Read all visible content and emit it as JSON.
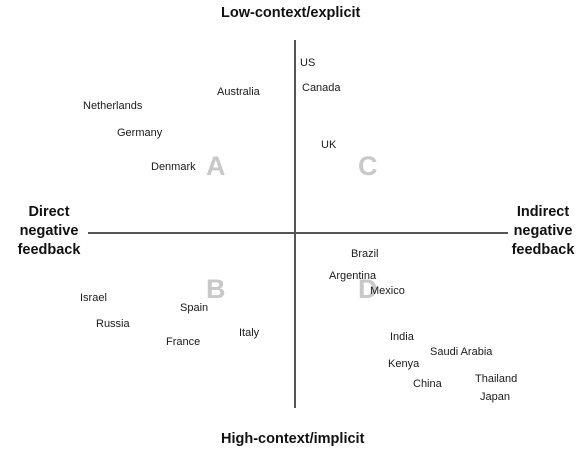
{
  "axes": {
    "top": "Low-context/explicit",
    "bottom": "High-context/implicit",
    "left": [
      "Direct",
      "negative",
      "feedback"
    ],
    "right": [
      "Indirect",
      "negative",
      "feedback"
    ]
  },
  "quadrants": [
    "A",
    "B",
    "C",
    "D"
  ],
  "countries": {
    "us": "US",
    "canada": "Canada",
    "australia": "Australia",
    "netherlands": "Netherlands",
    "germany": "Germany",
    "denmark": "Denmark",
    "uk": "UK",
    "brazil": "Brazil",
    "argentina": "Argentina",
    "mexico": "Mexico",
    "israel": "Israel",
    "spain": "Spain",
    "russia": "Russia",
    "france": "France",
    "italy": "Italy",
    "india": "India",
    "saudi_arabia": "Saudi Arabia",
    "kenya": "Kenya",
    "china": "China",
    "thailand": "Thailand",
    "japan": "Japan"
  },
  "colors": {
    "axis": "#555555",
    "quadrant_letter": "#c8c8c8",
    "text": "#1a1a1a"
  }
}
